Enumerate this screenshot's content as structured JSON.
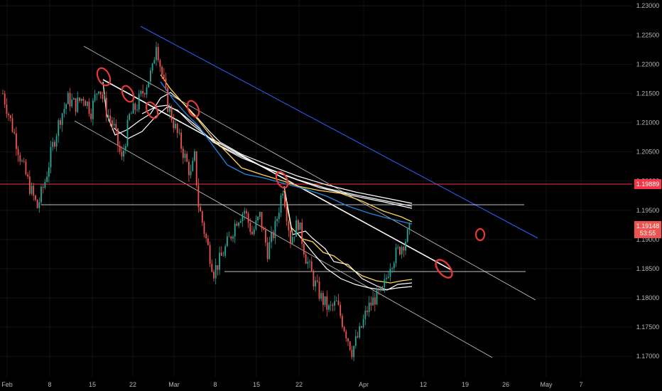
{
  "chart_data": {
    "type": "candlestick",
    "price_axis": {
      "ticks": [
        "1.23000",
        "1.22500",
        "1.22000",
        "1.21500",
        "1.21000",
        "1.20500",
        "1.20000",
        "1.19500",
        "1.19000",
        "1.18500",
        "1.18000",
        "1.17500",
        "1.17000"
      ],
      "range": [
        1.1665,
        1.231
      ]
    },
    "time_axis": {
      "ticks": [
        "Feb",
        "8",
        "15",
        "22",
        "Mar",
        "8",
        "15",
        "22",
        "Apr",
        "12",
        "19",
        "26",
        "May",
        "7"
      ]
    },
    "badges": {
      "horizontal_level": "1.19889",
      "current_price": "1.19148",
      "countdown": "53:55"
    },
    "colors": {
      "up": "#26a69a",
      "down": "#ef5350",
      "level_line": "#f23645",
      "price_badge": "#ef5350",
      "channel_blue": "#2962ff",
      "ma_yellow": "#ffd54f",
      "ma_blue": "#1e88e5",
      "ma_white": "#ffffff",
      "marker": "#e53935"
    },
    "price_path": [
      [
        0,
        1.215
      ],
      [
        6,
        1.208
      ],
      [
        10,
        1.203
      ],
      [
        14,
        1.199
      ],
      [
        18,
        1.1955
      ],
      [
        22,
        1.2
      ],
      [
        26,
        1.206
      ],
      [
        30,
        1.211
      ],
      [
        34,
        1.214
      ],
      [
        38,
        1.213
      ],
      [
        42,
        1.2145
      ],
      [
        46,
        1.212
      ],
      [
        50,
        1.2165
      ],
      [
        54,
        1.212
      ],
      [
        58,
        1.209
      ],
      [
        62,
        1.2035
      ],
      [
        66,
        1.211
      ],
      [
        70,
        1.213
      ],
      [
        74,
        1.216
      ],
      [
        78,
        1.219
      ],
      [
        80,
        1.224
      ],
      [
        82,
        1.22
      ],
      [
        86,
        1.213
      ],
      [
        90,
        1.209
      ],
      [
        94,
        1.205
      ],
      [
        98,
        1.201
      ],
      [
        100,
        1.204
      ],
      [
        102,
        1.196
      ],
      [
        106,
        1.19
      ],
      [
        110,
        1.1845
      ],
      [
        114,
        1.187
      ],
      [
        118,
        1.19
      ],
      [
        122,
        1.1935
      ],
      [
        126,
        1.195
      ],
      [
        130,
        1.191
      ],
      [
        134,
        1.194
      ],
      [
        138,
        1.188
      ],
      [
        142,
        1.192
      ],
      [
        146,
        1.199
      ],
      [
        150,
        1.19
      ],
      [
        154,
        1.193
      ],
      [
        158,
        1.187
      ],
      [
        162,
        1.183
      ],
      [
        166,
        1.18
      ],
      [
        170,
        1.178
      ],
      [
        174,
        1.179
      ],
      [
        178,
        1.175
      ],
      [
        182,
        1.171
      ],
      [
        186,
        1.174
      ],
      [
        190,
        1.178
      ],
      [
        194,
        1.18
      ],
      [
        198,
        1.181
      ],
      [
        202,
        1.186
      ],
      [
        206,
        1.188
      ],
      [
        210,
        1.19
      ],
      [
        212,
        1.1915
      ]
    ]
  }
}
